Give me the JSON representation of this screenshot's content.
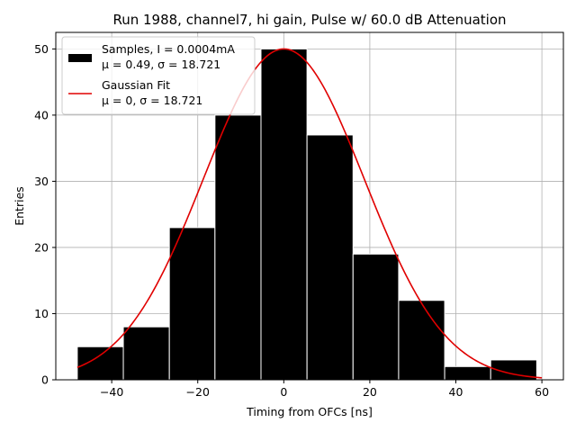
{
  "chart_data": {
    "type": "bar",
    "title": "Run 1988, channel7, hi gain, Pulse w/ 60.0 dB Attenuation",
    "xlabel": "Timing from OFCs [ns]",
    "ylabel": "Entries",
    "xlim": [
      -53,
      65
    ],
    "ylim": [
      0,
      52.5
    ],
    "xticks": [
      -40,
      -20,
      0,
      20,
      40,
      60
    ],
    "xtick_labels": [
      "−40",
      "−20",
      "0",
      "20",
      "40",
      "60"
    ],
    "yticks": [
      0,
      10,
      20,
      30,
      40,
      50
    ],
    "ytick_labels": [
      "0",
      "10",
      "20",
      "30",
      "40",
      "50"
    ],
    "grid": true,
    "legend_position": "top-left",
    "bin_edges": [
      -48,
      -37.3,
      -26.6,
      -16.0,
      -5.3,
      5.4,
      16.1,
      26.7,
      37.4,
      48.1,
      58.8
    ],
    "values": [
      5,
      8,
      23,
      40,
      50,
      37,
      19,
      12,
      2,
      3
    ],
    "bar_color": "#000000",
    "fit": {
      "mu": 0,
      "sigma": 18.721,
      "amplitude": 50,
      "x_range": [
        -48,
        60
      ],
      "color": "#e00000"
    },
    "legend": [
      {
        "line1": "Samples, I = 0.0004mA",
        "line2": "μ = 0.49, σ = 18.721"
      },
      {
        "line1": "Gaussian Fit",
        "line2": "μ = 0, σ = 18.721"
      }
    ]
  }
}
